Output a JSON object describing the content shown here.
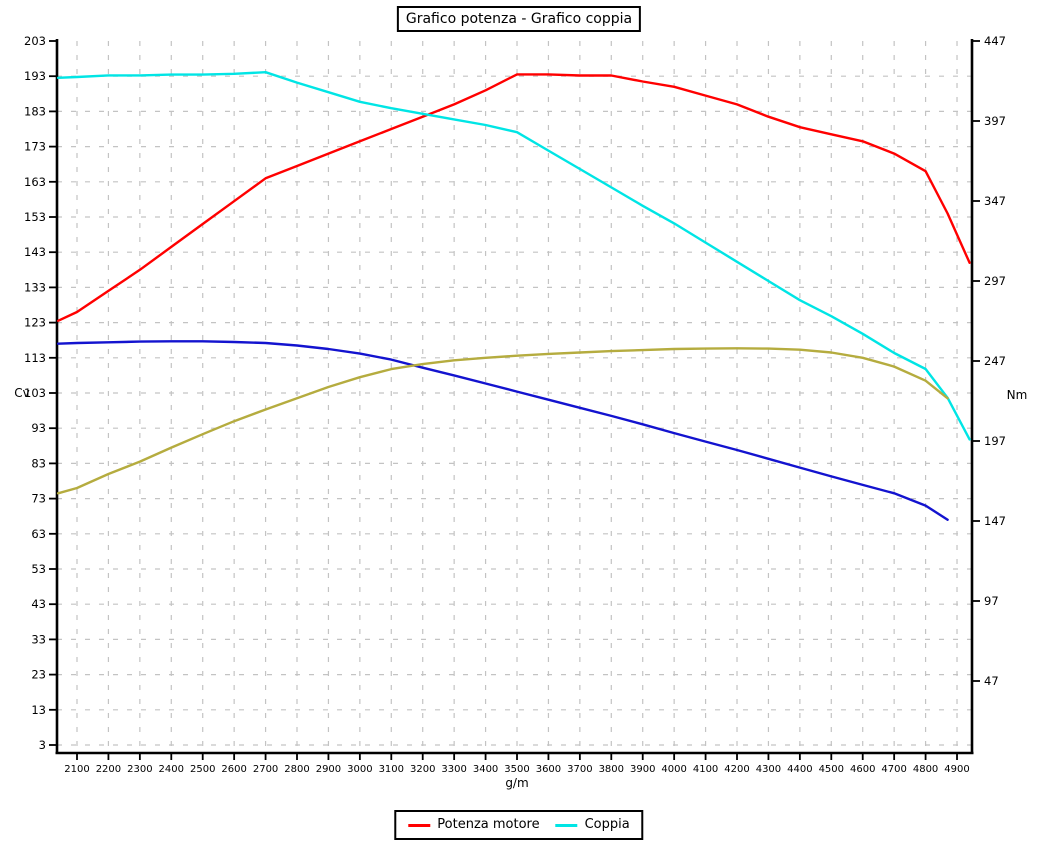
{
  "chart_data": {
    "type": "line",
    "title": "Grafico potenza - Grafico coppia",
    "xlabel": "g/m",
    "ylabel_left": "Cv",
    "ylabel_right": "Nm",
    "grid": true,
    "legend_position": "bottom",
    "axis_colors": {
      "axis": "#000000",
      "grid": "#c3c3c3"
    },
    "x_range_rpm": [
      2036,
      4948
    ],
    "y_left_range_cv": [
      3,
      203
    ],
    "y_right_range_nm": [
      47,
      447
    ],
    "left_ticks": [
      203,
      193,
      183,
      173,
      163,
      153,
      143,
      133,
      123,
      113,
      103,
      93,
      83,
      73,
      63,
      53,
      43,
      33,
      23,
      13,
      3
    ],
    "right_ticks": [
      447,
      397,
      347,
      297,
      247,
      197,
      147,
      97,
      47
    ],
    "x_ticks": [
      2100,
      2200,
      2300,
      2400,
      2500,
      2600,
      2700,
      2800,
      2900,
      3000,
      3100,
      3200,
      3300,
      3400,
      3500,
      3600,
      3700,
      3800,
      3900,
      4000,
      4100,
      4200,
      4300,
      4400,
      4500,
      4600,
      4700,
      4800,
      4900
    ],
    "series": [
      {
        "name": "Potenza motore",
        "axis": "left",
        "unit": "Cv",
        "color": "#ff0000",
        "in_legend": true,
        "points": [
          [
            2040,
            123.5
          ],
          [
            2100,
            126
          ],
          [
            2200,
            132
          ],
          [
            2300,
            138
          ],
          [
            2400,
            144.5
          ],
          [
            2500,
            151
          ],
          [
            2600,
            157.5
          ],
          [
            2700,
            164
          ],
          [
            2800,
            167.5
          ],
          [
            2900,
            171
          ],
          [
            3000,
            174.5
          ],
          [
            3100,
            178
          ],
          [
            3200,
            181.5
          ],
          [
            3300,
            185
          ],
          [
            3400,
            189
          ],
          [
            3500,
            193.5
          ],
          [
            3600,
            193.5
          ],
          [
            3700,
            193.2
          ],
          [
            3800,
            193.2
          ],
          [
            3900,
            191.5
          ],
          [
            4000,
            190
          ],
          [
            4100,
            187.5
          ],
          [
            4200,
            185
          ],
          [
            4300,
            181.5
          ],
          [
            4400,
            178.5
          ],
          [
            4500,
            176.5
          ],
          [
            4600,
            174.5
          ],
          [
            4700,
            171
          ],
          [
            4800,
            166
          ],
          [
            4870,
            154
          ],
          [
            4940,
            140
          ]
        ]
      },
      {
        "name": "Coppia",
        "axis": "right",
        "unit": "Nm",
        "color": "#00e5e5",
        "in_legend": true,
        "points": [
          [
            2040,
            424
          ],
          [
            2100,
            424.5
          ],
          [
            2200,
            425.5
          ],
          [
            2300,
            425.5
          ],
          [
            2400,
            426
          ],
          [
            2500,
            426
          ],
          [
            2600,
            426.5
          ],
          [
            2700,
            427.5
          ],
          [
            2800,
            421
          ],
          [
            2900,
            415
          ],
          [
            3000,
            409
          ],
          [
            3100,
            405
          ],
          [
            3200,
            401.5
          ],
          [
            3300,
            398
          ],
          [
            3400,
            394.5
          ],
          [
            3500,
            390
          ],
          [
            3600,
            378.5
          ],
          [
            3700,
            367
          ],
          [
            3800,
            355.5
          ],
          [
            3900,
            344
          ],
          [
            4000,
            333
          ],
          [
            4100,
            321
          ],
          [
            4200,
            309
          ],
          [
            4300,
            297
          ],
          [
            4400,
            285
          ],
          [
            4500,
            275
          ],
          [
            4600,
            264
          ],
          [
            4700,
            252
          ],
          [
            4800,
            242
          ],
          [
            4870,
            224
          ],
          [
            4940,
            198
          ]
        ]
      },
      {
        "name": null,
        "axis": "left",
        "unit": "Cv",
        "color": "#1313cf",
        "in_legend": false,
        "points": [
          [
            2040,
            117
          ],
          [
            2100,
            117.2
          ],
          [
            2200,
            117.4
          ],
          [
            2300,
            117.6
          ],
          [
            2400,
            117.7
          ],
          [
            2500,
            117.7
          ],
          [
            2600,
            117.5
          ],
          [
            2700,
            117.2
          ],
          [
            2800,
            116.5
          ],
          [
            2900,
            115.5
          ],
          [
            3000,
            114.2
          ],
          [
            3100,
            112.5
          ],
          [
            3200,
            110.2
          ],
          [
            3300,
            108
          ],
          [
            3400,
            105.7
          ],
          [
            3500,
            103.4
          ],
          [
            3600,
            101.1
          ],
          [
            3700,
            98.8
          ],
          [
            3800,
            96.5
          ],
          [
            3900,
            94.1
          ],
          [
            4000,
            91.6
          ],
          [
            4100,
            89.2
          ],
          [
            4200,
            86.8
          ],
          [
            4300,
            84.3
          ],
          [
            4400,
            81.8
          ],
          [
            4500,
            79.3
          ],
          [
            4600,
            76.9
          ],
          [
            4700,
            74.5
          ],
          [
            4800,
            71
          ],
          [
            4870,
            67
          ]
        ]
      },
      {
        "name": null,
        "axis": "left",
        "unit": "Cv",
        "color": "#b5ac3f",
        "in_legend": false,
        "points": [
          [
            2040,
            74.5
          ],
          [
            2100,
            76
          ],
          [
            2200,
            80
          ],
          [
            2300,
            83.5
          ],
          [
            2400,
            87.5
          ],
          [
            2500,
            91.3
          ],
          [
            2600,
            95
          ],
          [
            2700,
            98.3
          ],
          [
            2800,
            101.5
          ],
          [
            2900,
            104.7
          ],
          [
            3000,
            107.5
          ],
          [
            3100,
            109.8
          ],
          [
            3200,
            111.2
          ],
          [
            3300,
            112.3
          ],
          [
            3400,
            113
          ],
          [
            3500,
            113.6
          ],
          [
            3600,
            114.1
          ],
          [
            3700,
            114.5
          ],
          [
            3800,
            114.9
          ],
          [
            3900,
            115.2
          ],
          [
            4000,
            115.5
          ],
          [
            4100,
            115.6
          ],
          [
            4200,
            115.7
          ],
          [
            4300,
            115.6
          ],
          [
            4400,
            115.3
          ],
          [
            4500,
            114.5
          ],
          [
            4600,
            113
          ],
          [
            4700,
            110.5
          ],
          [
            4800,
            106.5
          ],
          [
            4870,
            101.5
          ]
        ]
      }
    ]
  }
}
